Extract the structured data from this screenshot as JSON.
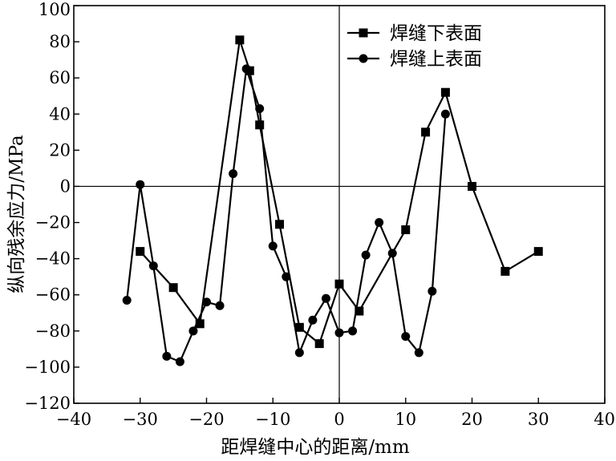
{
  "chart_data": {
    "type": "line",
    "title": "",
    "xlabel": "距焊缝中心的距离/mm",
    "ylabel": "纵向残余应力/MPa",
    "xlim": [
      -40,
      40
    ],
    "ylim": [
      -120,
      100
    ],
    "xticks": [
      -40,
      -30,
      -20,
      -10,
      0,
      10,
      20,
      30,
      40
    ],
    "yticks": [
      100,
      80,
      60,
      40,
      20,
      0,
      -20,
      -40,
      -60,
      -80,
      -100,
      -120
    ],
    "xtick_labels": [
      "−40",
      "−30",
      "−20",
      "−10",
      "0",
      "10",
      "20",
      "30",
      "40"
    ],
    "ytick_labels": [
      "100",
      "80",
      "60",
      "40",
      "20",
      "0",
      "−20",
      "−40",
      "−60",
      "−80",
      "−100",
      "−120"
    ],
    "grid": false,
    "reference_lines": {
      "x": 0,
      "y": 0
    },
    "legend_position": "top-right",
    "series": [
      {
        "name": "焊缝下表面",
        "marker": "square",
        "color": "#000000",
        "x": [
          -30,
          -25,
          -21,
          -15,
          -13.5,
          -12,
          -9,
          -6,
          -3,
          0,
          3,
          10,
          13,
          16,
          20,
          25,
          30
        ],
        "y": [
          -36,
          -56,
          -76,
          81,
          64,
          34,
          -21,
          -78,
          -87,
          -54,
          -69,
          -24,
          30,
          52,
          0,
          -47,
          -36
        ]
      },
      {
        "name": "焊缝上表面",
        "marker": "circle",
        "color": "#000000",
        "x": [
          -32,
          -30,
          -28,
          -26,
          -24,
          -22,
          -20,
          -18,
          -16,
          -14,
          -12,
          -10,
          -8,
          -6,
          -4,
          -2,
          0,
          2,
          4,
          6,
          8,
          10,
          12,
          14,
          16
        ],
        "y": [
          -63,
          1,
          -44,
          -94,
          -97,
          -80,
          -64,
          -66,
          7,
          65,
          43,
          -33,
          -50,
          -92,
          -74,
          -62,
          -81,
          -80,
          -38,
          -20,
          -37,
          -83,
          -92,
          -58,
          40
        ]
      }
    ]
  }
}
